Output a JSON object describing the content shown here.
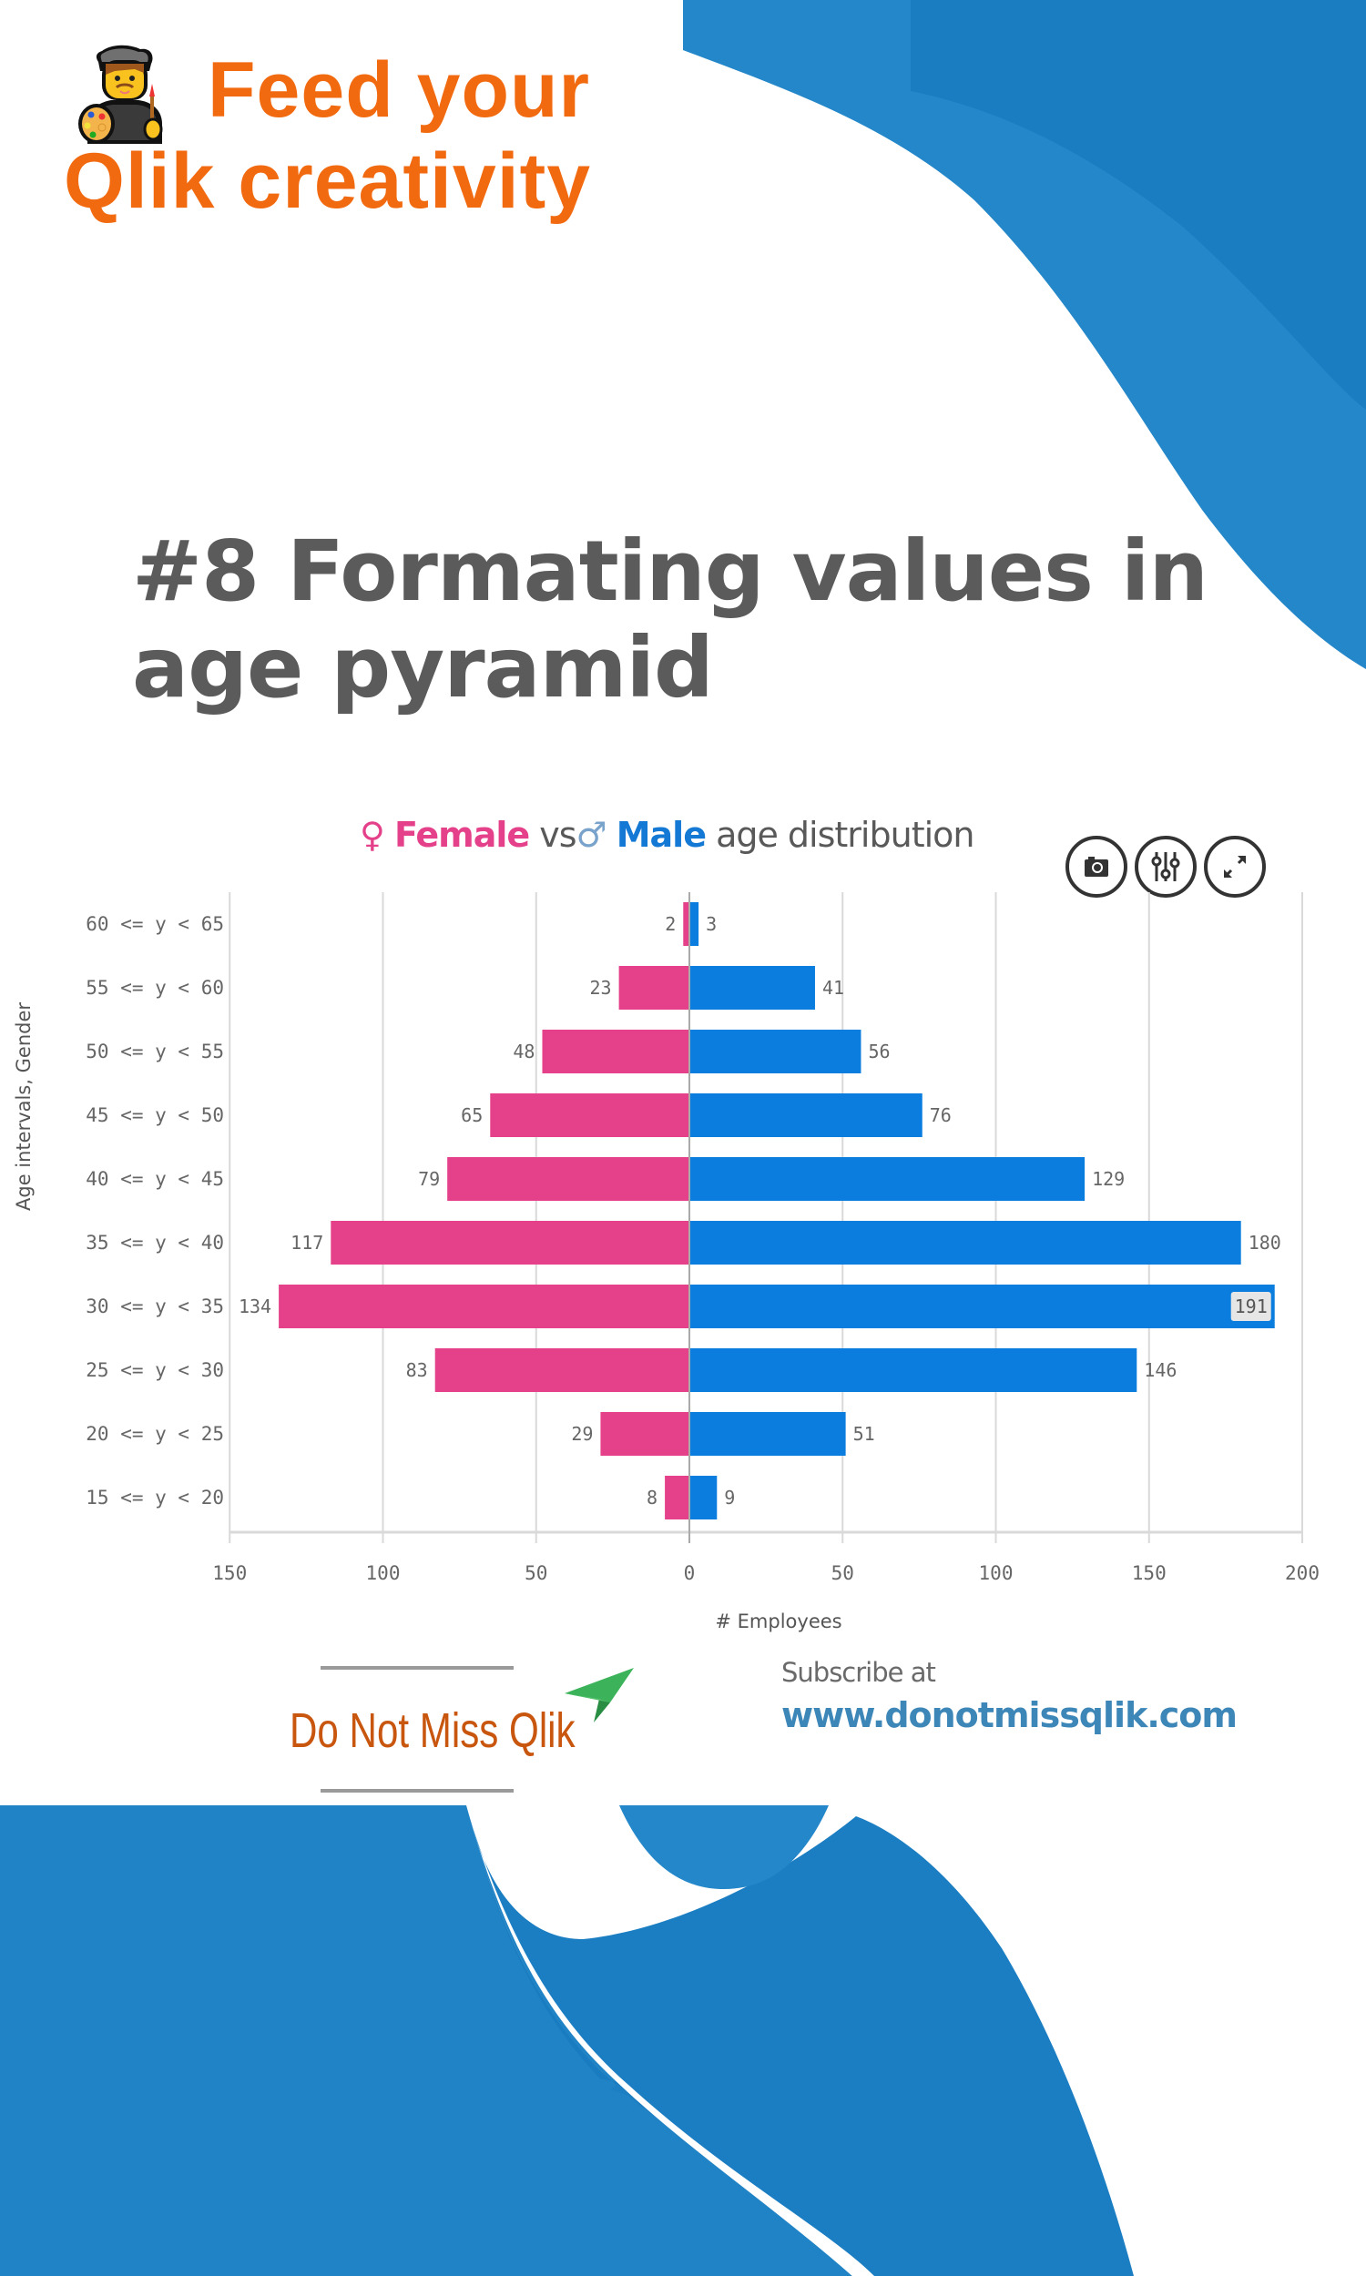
{
  "brand": {
    "line1": "Feed your",
    "line2": "Qlik creativity",
    "emoji_icon": "artist-icon",
    "color": "#f26a10"
  },
  "headline": {
    "line1": "#8 Formating values in",
    "line2": "age pyramid",
    "color": "#5b5b5b"
  },
  "chart_title": {
    "female_symbol": "♀",
    "female_label": "Female",
    "vs": " vs",
    "male_symbol": "♂",
    "male_label": "Male",
    "rest": " age distribution"
  },
  "chart_buttons": [
    {
      "icon": "camera-icon",
      "label": "Snapshot"
    },
    {
      "icon": "sliders-icon",
      "label": "Adjust"
    },
    {
      "icon": "expand-icon",
      "label": "Full screen"
    }
  ],
  "chart_data": {
    "type": "bar",
    "orientation": "horizontal",
    "subtype": "population-pyramid",
    "title": "♀ Female vs ♂ Male age distribution",
    "xlabel": "# Employees",
    "ylabel": "Age intervals, Gender",
    "categories": [
      "60 <= y < 65",
      "55 <= y < 60",
      "50 <= y < 55",
      "45 <= y < 50",
      "40 <= y < 45",
      "35 <= y < 40",
      "30 <= y < 35",
      "25 <= y < 30",
      "20 <= y < 25",
      "15 <= y < 20"
    ],
    "series": [
      {
        "name": "Female",
        "color": "#e5418b",
        "side": "left",
        "values": [
          2,
          23,
          48,
          65,
          79,
          117,
          134,
          83,
          29,
          8
        ]
      },
      {
        "name": "Male",
        "color": "#0a7ddf",
        "side": "right",
        "values": [
          3,
          41,
          56,
          76,
          129,
          180,
          191,
          146,
          51,
          9
        ]
      }
    ],
    "xlim": [
      -150,
      200
    ],
    "x_ticks": [
      -150,
      -100,
      -50,
      0,
      50,
      100,
      150,
      200
    ],
    "x_tick_labels": [
      "150",
      "100",
      "50",
      "0",
      "50",
      "100",
      "150",
      "200"
    ],
    "grid": true,
    "legend": "none",
    "highlighted_label": "191"
  },
  "footer": {
    "logo_text": "Do Not Miss Qlik",
    "subscribe_label": "Subscribe at",
    "url": "www.donotmissqlik.com"
  },
  "colors": {
    "background_blue": "#1f83c6",
    "background_blue_dark": "#1878bd",
    "accent_orange": "#f26a10",
    "female_pink": "#e5418b",
    "male_blue": "#0a7ddf"
  }
}
